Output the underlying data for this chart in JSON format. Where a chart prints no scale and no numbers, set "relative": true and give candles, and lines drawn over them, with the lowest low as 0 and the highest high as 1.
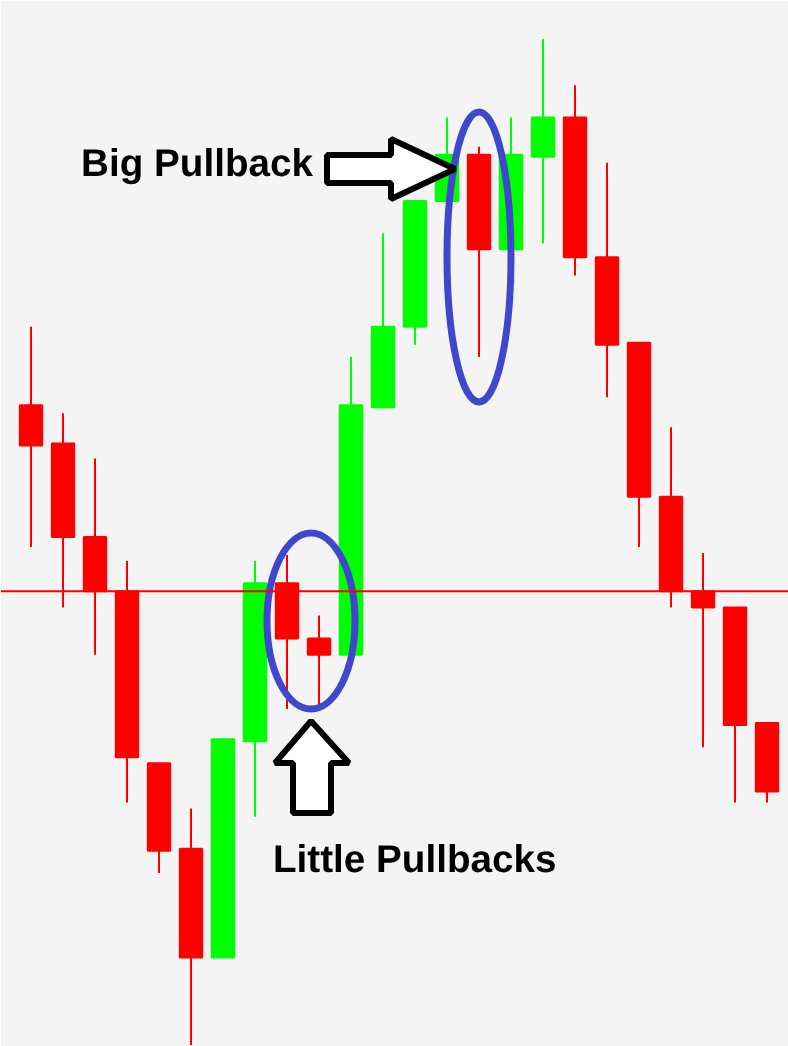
{
  "chart_data": {
    "type": "candlestick",
    "relative": true,
    "categories": [
      null,
      null,
      null,
      null,
      null,
      null,
      null,
      null,
      null,
      null,
      null,
      null,
      null,
      null,
      null,
      null,
      null,
      null,
      null,
      null,
      null,
      null,
      null,
      null
    ],
    "ohlc": [
      [
        0.636,
        0.714,
        0.495,
        0.596
      ],
      [
        0.598,
        0.628,
        0.435,
        0.505
      ],
      [
        0.505,
        0.583,
        0.388,
        0.451
      ],
      [
        0.451,
        0.481,
        0.241,
        0.286
      ],
      [
        0.28,
        0.28,
        0.171,
        0.193
      ],
      [
        0.195,
        0.235,
        0.0,
        0.087
      ],
      [
        0.087,
        0.304,
        0.087,
        0.304
      ],
      [
        0.302,
        0.481,
        0.227,
        0.459
      ],
      [
        0.459,
        0.487,
        0.334,
        0.404
      ],
      [
        0.404,
        0.427,
        0.334,
        0.388
      ],
      [
        0.388,
        0.684,
        0.388,
        0.636
      ],
      [
        0.634,
        0.807,
        0.634,
        0.714
      ],
      [
        0.714,
        0.839,
        0.696,
        0.839
      ],
      [
        0.839,
        0.922,
        0.839,
        0.885
      ],
      [
        0.885,
        0.893,
        0.684,
        0.791
      ],
      [
        0.791,
        0.922,
        0.791,
        0.885
      ],
      [
        0.883,
        1.0,
        0.797,
        0.922
      ],
      [
        0.922,
        0.954,
        0.765,
        0.783
      ],
      [
        0.783,
        0.877,
        0.644,
        0.696
      ],
      [
        0.698,
        0.698,
        0.495,
        0.545
      ],
      [
        0.545,
        0.614,
        0.435,
        0.451
      ],
      [
        0.451,
        0.489,
        0.296,
        0.435
      ],
      [
        0.435,
        0.435,
        0.241,
        0.318
      ],
      [
        0.32,
        0.32,
        0.241,
        0.252
      ]
    ],
    "colors": [
      "#ff0000",
      "#ff0000",
      "#ff0000",
      "#ff0000",
      "#ff0000",
      "#ff0000",
      "#00ff00",
      "#00ff00",
      "#ff0000",
      "#ff0000",
      "#00ff00",
      "#00ff00",
      "#00ff00",
      "#00ff00",
      "#ff0000",
      "#00ff00",
      "#00ff00",
      "#ff0000",
      "#ff0000",
      "#ff0000",
      "#ff0000",
      "#ff0000",
      "#ff0000",
      "#ff0000"
    ],
    "ref_lines": [
      {
        "axis": "y",
        "value": 0.451,
        "color": "#ff0000"
      }
    ],
    "annotations": [
      "Big Pullback",
      "Little Pullbacks"
    ]
  }
}
